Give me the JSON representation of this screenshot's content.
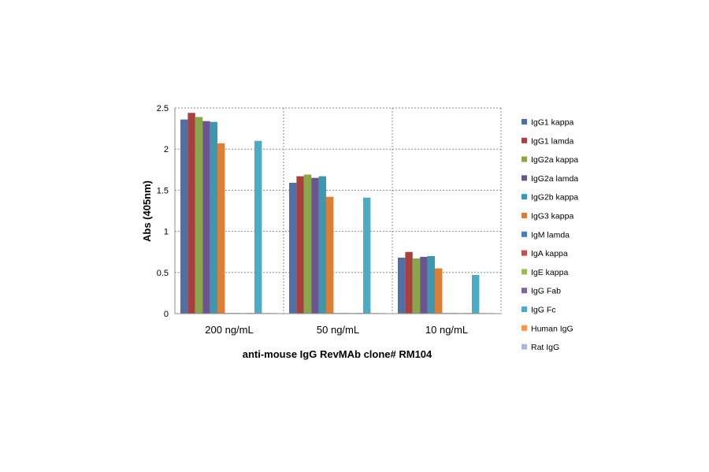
{
  "chart_data": {
    "type": "bar",
    "title": "",
    "xlabel": "anti-mouse  IgG RevMAb clone# RM104",
    "ylabel": "Abs (405nm)",
    "ylim": [
      0,
      2.5
    ],
    "yticks": [
      "0",
      "0.5",
      "1",
      "1.5",
      "2",
      "2.5"
    ],
    "ytick_values": [
      0,
      0.5,
      1,
      1.5,
      2,
      2.5
    ],
    "categories": [
      "200 ng/mL",
      "50 ng/mL",
      "10 ng/mL"
    ],
    "grid": true,
    "legend_position": "right",
    "series": [
      {
        "name": "IgG1 kappa",
        "color": "#4F6FA8",
        "values": [
          2.36,
          1.59,
          0.68
        ]
      },
      {
        "name": "IgG1 lamda",
        "color": "#A8413E",
        "values": [
          2.44,
          1.67,
          0.75
        ]
      },
      {
        "name": "IgG2a kappa",
        "color": "#8AA64A",
        "values": [
          2.39,
          1.69,
          0.67
        ]
      },
      {
        "name": "IgG2a lamda",
        "color": "#6C5490",
        "values": [
          2.34,
          1.65,
          0.69
        ]
      },
      {
        "name": "IgG2b kappa",
        "color": "#3D97AE",
        "values": [
          2.33,
          1.67,
          0.7
        ]
      },
      {
        "name": "IgG3 kappa",
        "color": "#DA7F35",
        "values": [
          2.07,
          1.42,
          0.55
        ]
      },
      {
        "name": "IgM lamda",
        "color": "#4A7EBB",
        "values": [
          0,
          0,
          0
        ]
      },
      {
        "name": "IgA kappa",
        "color": "#C0504D",
        "values": [
          0,
          0,
          0
        ]
      },
      {
        "name": "IgE kappa",
        "color": "#9BBB59",
        "values": [
          0,
          0,
          0
        ]
      },
      {
        "name": "IgG Fab",
        "color": "#8064A2",
        "values": [
          0,
          0,
          0
        ]
      },
      {
        "name": "IgG Fc",
        "color": "#4BACC6",
        "values": [
          2.1,
          1.41,
          0.47
        ]
      },
      {
        "name": "Human IgG",
        "color": "#F79646",
        "values": [
          0,
          0,
          0
        ]
      },
      {
        "name": "Rat IgG",
        "color": "#A9B8DC",
        "values": [
          0,
          0,
          0
        ]
      }
    ]
  }
}
